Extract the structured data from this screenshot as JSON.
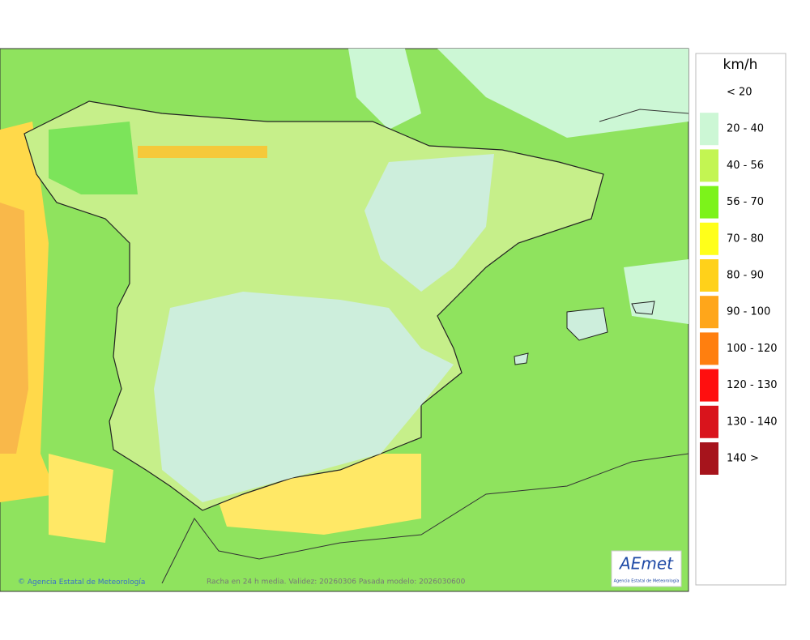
{
  "caption": "Racha en 24 h media. Validez: 20260306 Pasada modelo: 2026030600",
  "credit": "Agencia Estatal de Meteorología",
  "logo": {
    "name": "AEmet",
    "subtitle": "Agencia Estatal de Meteorología"
  },
  "legend": {
    "unit": "km/h",
    "items": [
      {
        "label": "< 20",
        "color": "#ffffff"
      },
      {
        "label": "20 - 40",
        "color": "#ccf7d5"
      },
      {
        "label": "40 - 56",
        "color": "#c3f552"
      },
      {
        "label": "56 - 70",
        "color": "#7cf31a"
      },
      {
        "label": "70 - 80",
        "color": "#ffff1a"
      },
      {
        "label": "80 - 90",
        "color": "#ffd11a"
      },
      {
        "label": "90 - 100",
        "color": "#ffa61a"
      },
      {
        "label": "100 - 120",
        "color": "#ff7f0f"
      },
      {
        "label": "120 - 130",
        "color": "#ff0f0f"
      },
      {
        "label": "130 - 140",
        "color": "#d9141c"
      },
      {
        "label": "140 >",
        "color": "#a6141c"
      }
    ]
  }
}
